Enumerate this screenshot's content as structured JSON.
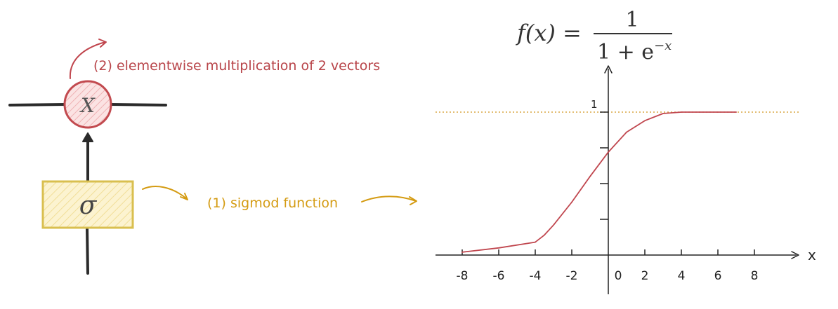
{
  "colors": {
    "sigma_stroke": "#d9bf4f",
    "sigma_fill": "#fbf0c2",
    "multiply_stroke": "#c24a4f",
    "multiply_fill": "#f7d3d3",
    "line": "#2b2b2b",
    "sigmoid_label": "#d49b12",
    "multiply_label": "#b84449",
    "curve": "#c0464e",
    "asymptote": "#d8a642"
  },
  "diagram": {
    "multiply_symbol": "X",
    "sigma_symbol": "σ",
    "multiply_label": "(2) elementwise multiplication of 2 vectors",
    "sigmoid_label": "(1) sigmod function"
  },
  "formula": {
    "lhs": "f(x) =",
    "numerator": "1",
    "denominator_base": "1 + e",
    "denominator_exp": "−x"
  },
  "chart_data": {
    "type": "line",
    "xlabel": "x",
    "x_ticks": [
      "-8",
      "-6",
      "-4",
      "-2",
      "0",
      "2",
      "4",
      "6",
      "8"
    ],
    "y_tick_label": "1",
    "xlim": [
      -8.5,
      10.5
    ],
    "ylim": [
      0,
      1.25
    ],
    "asymptote_y": 1,
    "series": [
      {
        "x": [
          -8,
          -6,
          -4,
          -3.5,
          -3,
          -2,
          -1,
          0,
          1,
          2,
          3,
          4,
          5,
          6,
          7
        ],
        "y": [
          0.02,
          0.05,
          0.09,
          0.14,
          0.21,
          0.37,
          0.55,
          0.72,
          0.86,
          0.94,
          0.99,
          1.0,
          1.0,
          1.0,
          1.0
        ]
      }
    ]
  }
}
